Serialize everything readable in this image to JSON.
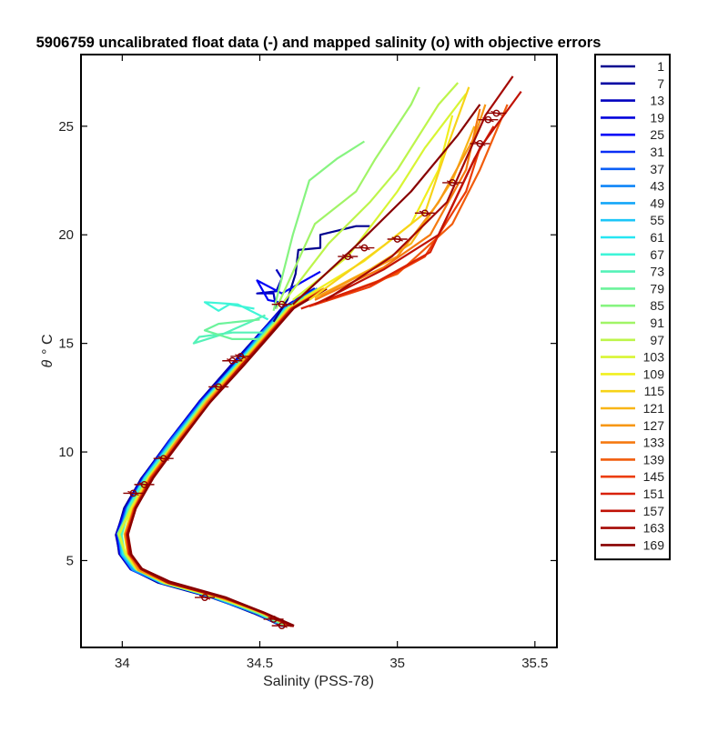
{
  "chart_data": {
    "type": "line",
    "title": "5906759 uncalibrated float data (-) and mapped salinity (o) with objective errors",
    "xlabel": "Salinity (PSS-78)",
    "ylabel_symbol": "θ",
    "ylabel_unit": "° C",
    "xlim": [
      33.85,
      35.58
    ],
    "ylim": [
      1.0,
      28.3
    ],
    "x_ticks": [
      34,
      34.5,
      35,
      35.5
    ],
    "x_tick_labels": [
      "34",
      "34.5",
      "35",
      "35.5"
    ],
    "y_ticks": [
      5,
      10,
      15,
      20,
      25
    ],
    "y_tick_labels": [
      "5",
      "10",
      "15",
      "20",
      "25"
    ],
    "grid": false,
    "legend_position": "outside-right",
    "legend": [
      "1",
      "7",
      "13",
      "19",
      "25",
      "31",
      "37",
      "43",
      "49",
      "55",
      "61",
      "67",
      "73",
      "79",
      "85",
      "91",
      "97",
      "103",
      "109",
      "115",
      "121",
      "127",
      "133",
      "139",
      "145",
      "151",
      "157",
      "163",
      "169"
    ],
    "colors": [
      "#00008f",
      "#0000a3",
      "#0000bf",
      "#0000db",
      "#0000f7",
      "#0a2ef5",
      "#0b5ff6",
      "#0d84f7",
      "#13a6f8",
      "#1cc6f8",
      "#27e6f2",
      "#3ff5d8",
      "#55f2b8",
      "#6cf39b",
      "#86f480",
      "#a0f466",
      "#bdf54b",
      "#d8f533",
      "#f0ef1e",
      "#f7d318",
      "#f8b516",
      "#f79714",
      "#f57a10",
      "#f15c0c",
      "#ec3d08",
      "#d82106",
      "#c01205",
      "#a40904",
      "#880000"
    ],
    "deep_curve": [
      {
        "s": 34.6,
        "t": 2.0
      },
      {
        "s": 34.5,
        "t": 2.6
      },
      {
        "s": 34.35,
        "t": 3.3
      },
      {
        "s": 34.15,
        "t": 4.0
      },
      {
        "s": 34.05,
        "t": 4.6
      },
      {
        "s": 34.01,
        "t": 5.3
      },
      {
        "s": 34.0,
        "t": 6.2
      },
      {
        "s": 34.03,
        "t": 7.4
      },
      {
        "s": 34.09,
        "t": 8.8
      },
      {
        "s": 34.19,
        "t": 10.5
      },
      {
        "s": 34.3,
        "t": 12.3
      },
      {
        "s": 34.42,
        "t": 14.0
      },
      {
        "s": 34.53,
        "t": 15.6
      },
      {
        "s": 34.6,
        "t": 16.6
      },
      {
        "s": 34.72,
        "t": 17.5
      }
    ],
    "upper_profiles": [
      {
        "c": 0,
        "p": [
          [
            34.55,
            16.0
          ],
          [
            34.6,
            17.0
          ],
          [
            34.63,
            18.2
          ],
          [
            34.64,
            19.3
          ],
          [
            34.72,
            19.4
          ],
          [
            34.72,
            20.0
          ],
          [
            34.85,
            20.4
          ],
          [
            34.9,
            20.4
          ]
        ]
      },
      {
        "c": 2,
        "p": [
          [
            34.56,
            16.6
          ],
          [
            34.55,
            17.3
          ],
          [
            34.49,
            17.3
          ],
          [
            34.56,
            17.4
          ],
          [
            34.58,
            18.0
          ],
          [
            34.56,
            18.4
          ]
        ]
      },
      {
        "c": 4,
        "p": [
          [
            34.57,
            16.9
          ],
          [
            34.53,
            17.0
          ],
          [
            34.49,
            17.9
          ],
          [
            34.58,
            17.3
          ],
          [
            34.65,
            17.8
          ],
          [
            34.72,
            18.3
          ]
        ]
      },
      {
        "c": 11,
        "p": [
          [
            34.53,
            16.1
          ],
          [
            34.42,
            16.8
          ],
          [
            34.3,
            16.9
          ],
          [
            34.35,
            16.5
          ],
          [
            34.39,
            16.8
          ],
          [
            34.48,
            16.6
          ]
        ]
      },
      {
        "c": 12,
        "p": [
          [
            34.51,
            15.5
          ],
          [
            34.4,
            15.5
          ],
          [
            34.28,
            15.3
          ],
          [
            34.26,
            15.0
          ],
          [
            34.36,
            15.4
          ],
          [
            34.45,
            15.9
          ],
          [
            34.52,
            16.3
          ]
        ]
      },
      {
        "c": 13,
        "p": [
          [
            34.5,
            15.2
          ],
          [
            34.4,
            15.2
          ],
          [
            34.3,
            15.6
          ],
          [
            34.35,
            15.9
          ],
          [
            34.5,
            16.1
          ]
        ]
      },
      {
        "c": 14,
        "p": [
          [
            34.55,
            16.5
          ],
          [
            34.62,
            20.0
          ],
          [
            34.68,
            22.5
          ],
          [
            34.78,
            23.5
          ],
          [
            34.88,
            24.3
          ]
        ]
      },
      {
        "c": 15,
        "p": [
          [
            34.56,
            16.6
          ],
          [
            34.7,
            20.5
          ],
          [
            34.85,
            22.0
          ],
          [
            34.92,
            23.5
          ],
          [
            35.05,
            26.0
          ],
          [
            35.08,
            26.8
          ]
        ]
      },
      {
        "c": 16,
        "p": [
          [
            34.58,
            16.8
          ],
          [
            34.75,
            19.6
          ],
          [
            34.9,
            21.5
          ],
          [
            35.0,
            23.0
          ],
          [
            35.15,
            26.0
          ],
          [
            35.22,
            27.0
          ]
        ]
      },
      {
        "c": 17,
        "p": [
          [
            34.62,
            17.0
          ],
          [
            34.82,
            19.0
          ],
          [
            35.0,
            22.0
          ],
          [
            35.1,
            24.0
          ],
          [
            35.25,
            26.5
          ]
        ]
      },
      {
        "c": 18,
        "p": [
          [
            34.66,
            17.1
          ],
          [
            34.88,
            18.8
          ],
          [
            35.05,
            20.5
          ],
          [
            35.15,
            23.0
          ],
          [
            35.2,
            25.5
          ]
        ]
      },
      {
        "c": 19,
        "p": [
          [
            34.68,
            17.0
          ],
          [
            34.95,
            19.5
          ],
          [
            35.1,
            21.0
          ],
          [
            35.18,
            24.0
          ],
          [
            35.26,
            26.8
          ]
        ]
      },
      {
        "c": 20,
        "p": [
          [
            34.7,
            17.1
          ],
          [
            34.9,
            18.4
          ],
          [
            35.05,
            19.6
          ],
          [
            35.2,
            22.5
          ],
          [
            35.28,
            25.0
          ]
        ]
      },
      {
        "c": 21,
        "p": [
          [
            34.72,
            17.2
          ],
          [
            35.0,
            19.0
          ],
          [
            35.15,
            21.5
          ],
          [
            35.28,
            24.5
          ],
          [
            35.32,
            26.0
          ]
        ]
      },
      {
        "c": 22,
        "p": [
          [
            34.7,
            17.0
          ],
          [
            34.95,
            18.5
          ],
          [
            35.12,
            20.0
          ],
          [
            35.25,
            23.0
          ],
          [
            35.3,
            25.8
          ]
        ]
      },
      {
        "c": 23,
        "p": [
          [
            34.72,
            16.9
          ],
          [
            35.0,
            18.2
          ],
          [
            35.2,
            20.5
          ],
          [
            35.3,
            23.0
          ],
          [
            35.4,
            26.0
          ]
        ]
      },
      {
        "c": 24,
        "p": [
          [
            34.68,
            16.7
          ],
          [
            34.9,
            17.6
          ],
          [
            35.1,
            19.0
          ],
          [
            35.25,
            22.0
          ],
          [
            35.3,
            24.0
          ]
        ]
      },
      {
        "c": 25,
        "p": [
          [
            34.65,
            16.6
          ],
          [
            34.92,
            17.8
          ],
          [
            35.12,
            19.2
          ],
          [
            35.28,
            23.5
          ],
          [
            35.35,
            25.0
          ]
        ]
      },
      {
        "c": 26,
        "p": [
          [
            34.7,
            16.8
          ],
          [
            34.95,
            18.4
          ],
          [
            35.15,
            20.0
          ],
          [
            35.3,
            24.0
          ],
          [
            35.45,
            26.6
          ]
        ]
      },
      {
        "c": 27,
        "p": [
          [
            34.74,
            17.0
          ],
          [
            34.98,
            19.0
          ],
          [
            35.18,
            21.5
          ],
          [
            35.32,
            25.5
          ],
          [
            35.42,
            27.3
          ]
        ]
      },
      {
        "c": 28,
        "p": [
          [
            34.62,
            16.8
          ],
          [
            34.85,
            19.5
          ],
          [
            35.05,
            22.0
          ],
          [
            35.22,
            24.6
          ],
          [
            35.3,
            26.0
          ]
        ]
      }
    ],
    "error_markers": [
      {
        "s": 34.58,
        "t": 2.0
      },
      {
        "s": 34.55,
        "t": 2.3
      },
      {
        "s": 34.3,
        "t": 3.3
      },
      {
        "s": 34.08,
        "t": 8.5
      },
      {
        "s": 34.04,
        "t": 8.1
      },
      {
        "s": 34.15,
        "t": 9.7
      },
      {
        "s": 34.35,
        "t": 13.0
      },
      {
        "s": 34.4,
        "t": 14.2
      },
      {
        "s": 34.43,
        "t": 14.4
      },
      {
        "s": 34.58,
        "t": 16.8
      },
      {
        "s": 34.82,
        "t": 19.0
      },
      {
        "s": 34.88,
        "t": 19.4
      },
      {
        "s": 35.0,
        "t": 19.8
      },
      {
        "s": 35.1,
        "t": 21.0
      },
      {
        "s": 35.2,
        "t": 22.4
      },
      {
        "s": 35.3,
        "t": 24.2
      },
      {
        "s": 35.33,
        "t": 25.3
      },
      {
        "s": 35.36,
        "t": 25.6
      }
    ]
  }
}
